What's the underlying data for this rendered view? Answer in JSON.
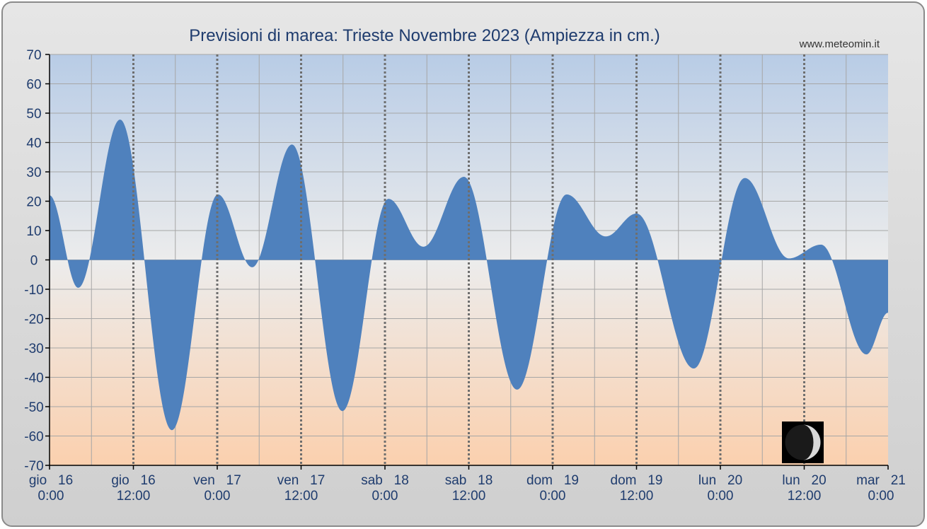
{
  "title": "Previsioni di marea: Trieste Novembre 2023 (Ampiezza in cm.)",
  "watermark": "www.meteomin.it",
  "moon_icon": "waning-crescent-moon-icon",
  "colors": {
    "series_fill": "#4f81bd",
    "plot_top": "#b8cce6",
    "plot_mid": "#ececec",
    "plot_bottom": "#fbd0ae",
    "title_color": "#1f3c6e",
    "frame_bg": "#d6d6d6"
  },
  "chart_data": {
    "type": "area",
    "title": "Previsioni di marea: Trieste Novembre 2023 (Ampiezza in cm.)",
    "xlabel": "",
    "ylabel": "",
    "ylim": [
      -70,
      70
    ],
    "yticks": [
      70,
      60,
      50,
      40,
      30,
      20,
      10,
      0,
      -10,
      -20,
      -30,
      -40,
      -50,
      -60,
      -70
    ],
    "xlim_hours": [
      0,
      120
    ],
    "x_tick_labels": [
      {
        "hour": 0,
        "line1": "gio   16",
        "line2": "0:00"
      },
      {
        "hour": 12,
        "line1": "gio   16",
        "line2": "12:00"
      },
      {
        "hour": 24,
        "line1": "ven   17",
        "line2": "0:00"
      },
      {
        "hour": 36,
        "line1": "ven   17",
        "line2": "12:00"
      },
      {
        "hour": 48,
        "line1": "sab   18",
        "line2": "0:00"
      },
      {
        "hour": 60,
        "line1": "sab   18",
        "line2": "12:00"
      },
      {
        "hour": 72,
        "line1": "dom   19",
        "line2": "0:00"
      },
      {
        "hour": 84,
        "line1": "dom   19",
        "line2": "12:00"
      },
      {
        "hour": 96,
        "line1": "lun   20",
        "line2": "0:00"
      },
      {
        "hour": 108,
        "line1": "lun   20",
        "line2": "12:00"
      },
      {
        "hour": 120,
        "line1": "mar   21",
        "line2": "0:00"
      }
    ],
    "grid": true,
    "series": [
      {
        "values": [
          {
            "x": 0,
            "y": 22
          },
          {
            "x": 4.1,
            "y": -9.5
          },
          {
            "x": 10.1,
            "y": 47.8
          },
          {
            "x": 17.5,
            "y": -58
          },
          {
            "x": 24.1,
            "y": 22.3
          },
          {
            "x": 29,
            "y": -2.5
          },
          {
            "x": 34.7,
            "y": 39.3
          },
          {
            "x": 41.9,
            "y": -51.5
          },
          {
            "x": 48.5,
            "y": 20.8
          },
          {
            "x": 53.5,
            "y": 4.5
          },
          {
            "x": 59.3,
            "y": 28.3
          },
          {
            "x": 66.9,
            "y": -44.2
          },
          {
            "x": 74,
            "y": 22.3
          },
          {
            "x": 79.6,
            "y": 8
          },
          {
            "x": 84,
            "y": 15.8
          },
          {
            "x": 92.2,
            "y": -37
          },
          {
            "x": 99.5,
            "y": 27.9
          },
          {
            "x": 105.8,
            "y": 0.5
          },
          {
            "x": 110.4,
            "y": 5.2
          },
          {
            "x": 116.9,
            "y": -32.2
          },
          {
            "x": 120,
            "y": -18
          }
        ]
      }
    ]
  }
}
